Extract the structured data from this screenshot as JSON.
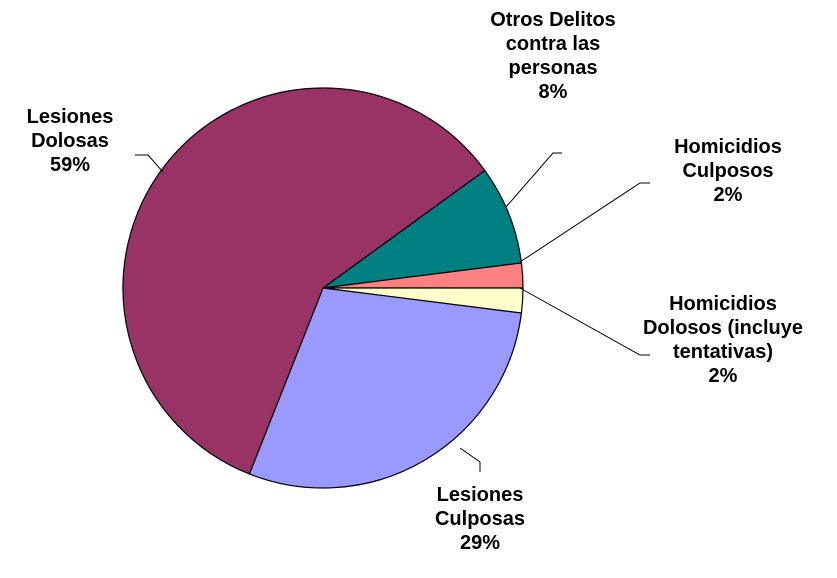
{
  "chart_data": {
    "type": "pie",
    "categories": [
      "Otros Delitos contra las personas",
      "Homicidios Culposos",
      "Homicidios Dolosos (incluye tentativas)",
      "Lesiones Culposas",
      "Lesiones Dolosas"
    ],
    "values": [
      8,
      2,
      2,
      29,
      59
    ],
    "value_labels": [
      "8%",
      "2%",
      "2%",
      "29%",
      "59%"
    ],
    "colors": [
      "#008080",
      "#ff8080",
      "#ffffcc",
      "#9999ff",
      "#993366"
    ]
  }
}
